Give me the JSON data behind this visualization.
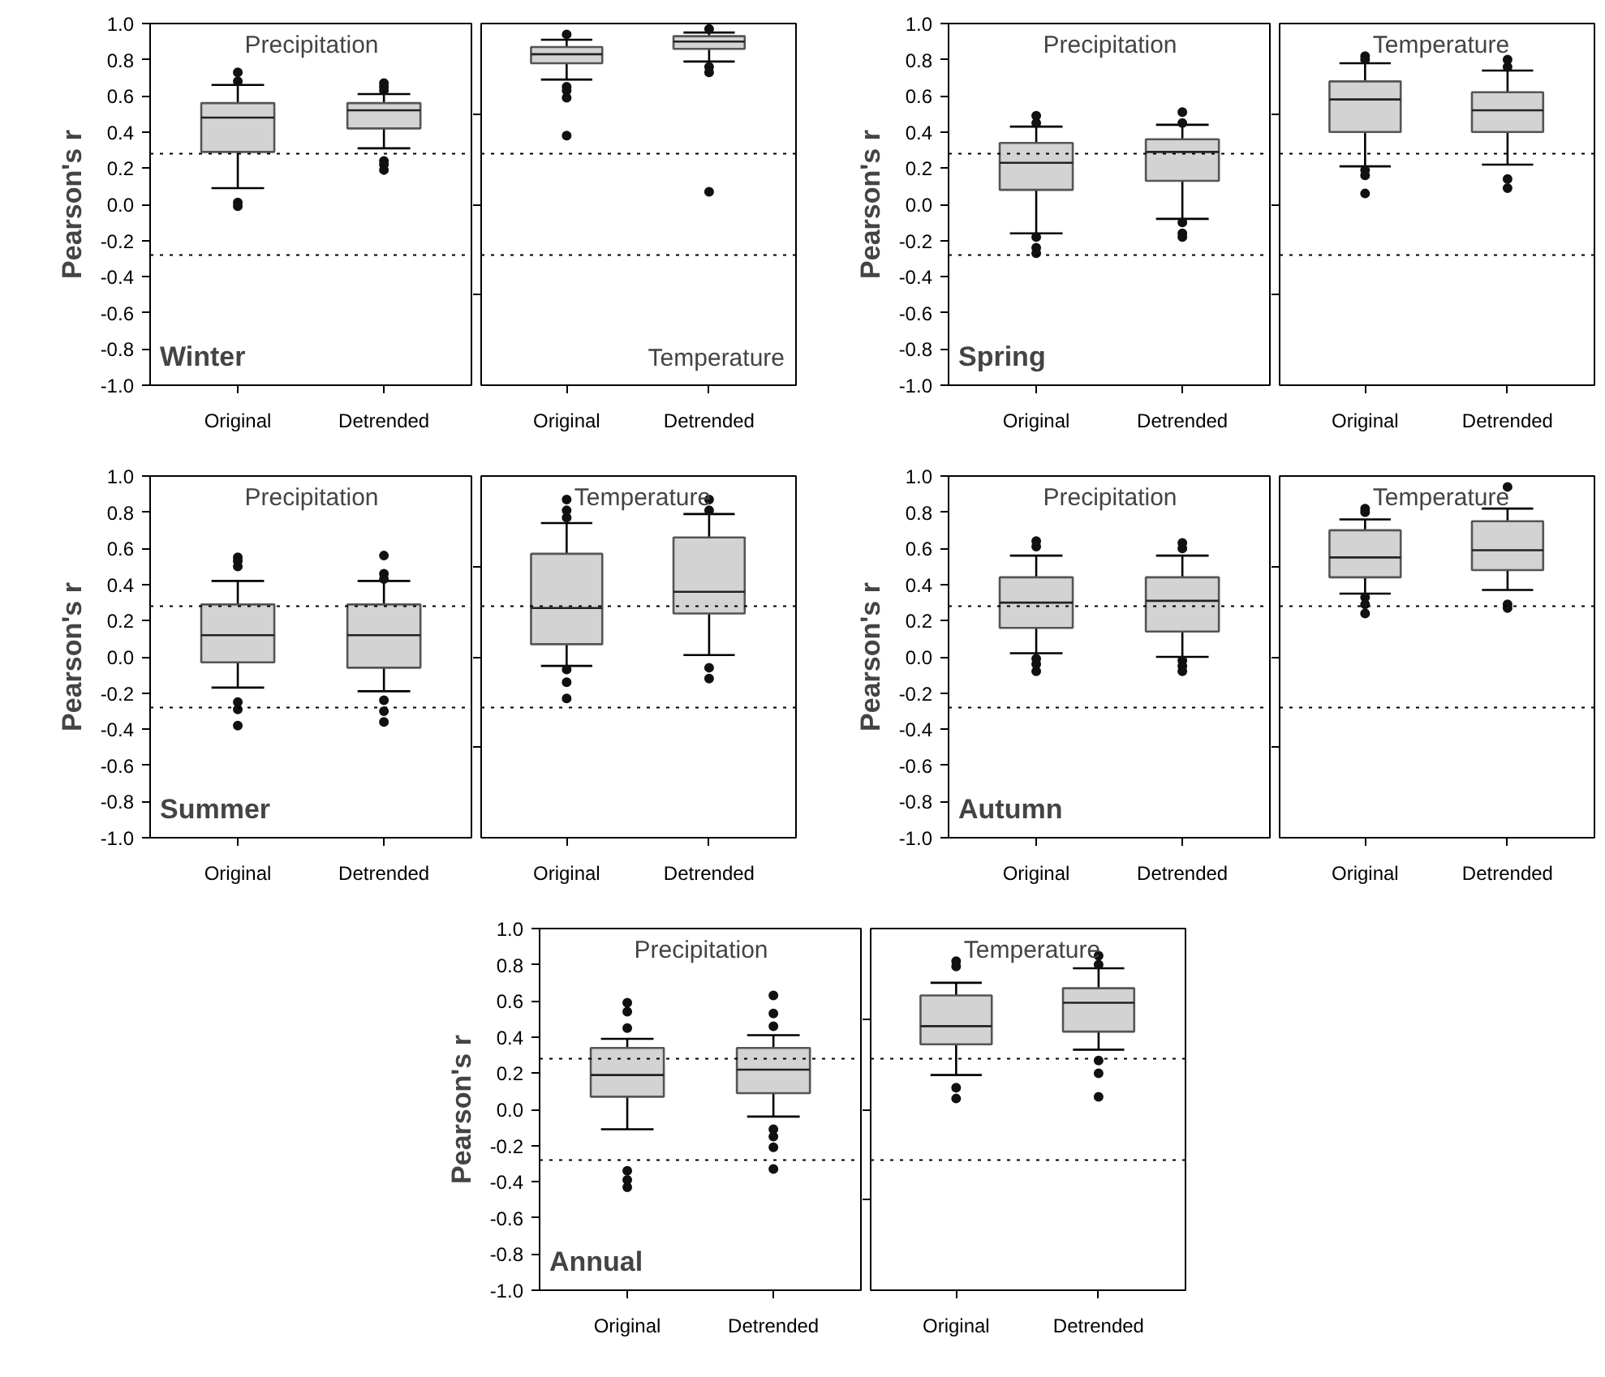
{
  "chart_data": [
    {
      "type": "box",
      "ylabel": "Pearson's r",
      "annotations": [
        "Precipitation",
        "Winter"
      ],
      "categories": [
        "Original",
        "Detrended"
      ],
      "ylim": [
        -1,
        1
      ],
      "yticks": [
        {
          "value": 1,
          "label": "1.0"
        },
        0.8,
        0.6,
        0.4,
        0.2,
        {
          "value": 0,
          "label": "0.0"
        },
        -0.2,
        -0.4,
        -0.6,
        -0.8,
        {
          "value": -1,
          "label": "-1.0"
        }
      ],
      "ref_lines": [
        {
          "axis": "y",
          "value": 0.28,
          "line_style": "dotted"
        },
        {
          "axis": "y",
          "value": -0.28,
          "line_style": "dotted"
        }
      ],
      "boxes": [
        {
          "low": 0.09,
          "q1": 0.29,
          "median": 0.48,
          "q3": 0.56,
          "high": 0.66,
          "outliers": [
            0.73,
            0.68,
            0.01,
            -0.01
          ]
        },
        {
          "low": 0.31,
          "q1": 0.42,
          "median": 0.52,
          "q3": 0.56,
          "high": 0.61,
          "outliers": [
            0.67,
            0.65,
            0.63,
            0.24,
            0.22,
            0.19
          ]
        }
      ]
    },
    {
      "type": "box",
      "annotations": [
        "Temperature"
      ],
      "tick_labels": "x",
      "categories": [
        "Original",
        "Detrended"
      ],
      "ylim": [
        -1,
        1
      ],
      "yticks": [
        {
          "value": 0.5,
          "label": null
        },
        {
          "value": 0,
          "label": null
        },
        {
          "value": -0.5,
          "label": null
        }
      ],
      "ref_lines": [
        {
          "axis": "y",
          "value": 0.28,
          "line_style": "dotted"
        },
        {
          "axis": "y",
          "value": -0.28,
          "line_style": "dotted"
        }
      ],
      "boxes": [
        {
          "low": 0.69,
          "q1": 0.78,
          "median": 0.83,
          "q3": 0.87,
          "high": 0.91,
          "outliers": [
            0.94,
            0.65,
            0.63,
            0.59,
            0.38
          ]
        },
        {
          "low": 0.79,
          "q1": 0.86,
          "median": 0.9,
          "q3": 0.93,
          "high": 0.95,
          "outliers": [
            0.97,
            0.76,
            0.73,
            0.07
          ]
        }
      ]
    },
    {
      "type": "box",
      "ylabel": "Pearson's r",
      "annotations": [
        "Precipitation",
        "Spring"
      ],
      "categories": [
        "Original",
        "Detrended"
      ],
      "ylim": [
        -1,
        1
      ],
      "yticks": [
        {
          "value": 1,
          "label": "1.0"
        },
        0.8,
        0.6,
        0.4,
        0.2,
        {
          "value": 0,
          "label": "0.0"
        },
        -0.2,
        -0.4,
        -0.6,
        -0.8,
        {
          "value": -1,
          "label": "-1.0"
        }
      ],
      "ref_lines": [
        {
          "axis": "y",
          "value": 0.28,
          "line_style": "dotted"
        },
        {
          "axis": "y",
          "value": -0.28,
          "line_style": "dotted"
        }
      ],
      "boxes": [
        {
          "low": -0.16,
          "q1": 0.08,
          "median": 0.23,
          "q3": 0.34,
          "high": 0.43,
          "outliers": [
            0.49,
            0.45,
            -0.18,
            -0.24,
            -0.27
          ]
        },
        {
          "low": -0.08,
          "q1": 0.13,
          "median": 0.29,
          "q3": 0.36,
          "high": 0.44,
          "outliers": [
            0.51,
            0.45,
            -0.1,
            -0.16,
            -0.18
          ]
        }
      ]
    },
    {
      "type": "box",
      "annotations": [
        "Temperature"
      ],
      "tick_labels": "x",
      "categories": [
        "Original",
        "Detrended"
      ],
      "ylim": [
        -1,
        1
      ],
      "yticks": [
        {
          "value": 0.5,
          "label": null
        },
        {
          "value": 0,
          "label": null
        },
        {
          "value": -0.5,
          "label": null
        }
      ],
      "ref_lines": [
        {
          "axis": "y",
          "value": 0.28,
          "line_style": "dotted"
        },
        {
          "axis": "y",
          "value": -0.28,
          "line_style": "dotted"
        }
      ],
      "boxes": [
        {
          "low": 0.21,
          "q1": 0.4,
          "median": 0.58,
          "q3": 0.68,
          "high": 0.78,
          "outliers": [
            0.82,
            0.8,
            0.19,
            0.16,
            0.06
          ]
        },
        {
          "low": 0.22,
          "q1": 0.4,
          "median": 0.52,
          "q3": 0.62,
          "high": 0.74,
          "outliers": [
            0.8,
            0.76,
            0.14,
            0.09
          ]
        }
      ]
    },
    {
      "type": "box",
      "ylabel": "Pearson's r",
      "annotations": [
        "Precipitation",
        "Summer"
      ],
      "categories": [
        "Original",
        "Detrended"
      ],
      "ylim": [
        -1,
        1
      ],
      "yticks": [
        {
          "value": 1,
          "label": "1.0"
        },
        0.8,
        0.6,
        0.4,
        0.2,
        {
          "value": 0,
          "label": "0.0"
        },
        -0.2,
        -0.4,
        -0.6,
        -0.8,
        {
          "value": -1,
          "label": "-1.0"
        }
      ],
      "ref_lines": [
        {
          "axis": "y",
          "value": 0.28,
          "line_style": "dotted"
        },
        {
          "axis": "y",
          "value": -0.28,
          "line_style": "dotted"
        }
      ],
      "boxes": [
        {
          "low": -0.17,
          "q1": -0.03,
          "median": 0.12,
          "q3": 0.29,
          "high": 0.42,
          "outliers": [
            0.55,
            0.53,
            0.5,
            -0.25,
            -0.29,
            -0.38
          ]
        },
        {
          "low": -0.19,
          "q1": -0.06,
          "median": 0.12,
          "q3": 0.29,
          "high": 0.42,
          "outliers": [
            0.56,
            0.46,
            0.43,
            -0.24,
            -0.3,
            -0.36
          ]
        }
      ]
    },
    {
      "type": "box",
      "annotations": [
        "Temperature"
      ],
      "tick_labels": "x",
      "categories": [
        "Original",
        "Detrended"
      ],
      "ylim": [
        -1,
        1
      ],
      "yticks": [
        {
          "value": 0.5,
          "label": null
        },
        {
          "value": 0,
          "label": null
        },
        {
          "value": -0.5,
          "label": null
        }
      ],
      "ref_lines": [
        {
          "axis": "y",
          "value": 0.28,
          "line_style": "dotted"
        },
        {
          "axis": "y",
          "value": -0.28,
          "line_style": "dotted"
        }
      ],
      "boxes": [
        {
          "low": -0.05,
          "q1": 0.07,
          "median": 0.27,
          "q3": 0.57,
          "high": 0.74,
          "outliers": [
            0.87,
            0.81,
            0.77,
            -0.07,
            -0.14,
            -0.23
          ]
        },
        {
          "low": 0.01,
          "q1": 0.24,
          "median": 0.36,
          "q3": 0.66,
          "high": 0.79,
          "outliers": [
            0.87,
            0.81,
            -0.06,
            -0.12
          ]
        }
      ]
    },
    {
      "type": "box",
      "ylabel": "Pearson's r",
      "annotations": [
        "Precipitation",
        "Autumn"
      ],
      "categories": [
        "Original",
        "Detrended"
      ],
      "ylim": [
        -1,
        1
      ],
      "yticks": [
        {
          "value": 1,
          "label": "1.0"
        },
        0.8,
        0.6,
        0.4,
        0.2,
        {
          "value": 0,
          "label": "0.0"
        },
        -0.2,
        -0.4,
        -0.6,
        -0.8,
        {
          "value": -1,
          "label": "-1.0"
        }
      ],
      "ref_lines": [
        {
          "axis": "y",
          "value": 0.28,
          "line_style": "dotted"
        },
        {
          "axis": "y",
          "value": -0.28,
          "line_style": "dotted"
        }
      ],
      "boxes": [
        {
          "low": 0.02,
          "q1": 0.16,
          "median": 0.3,
          "q3": 0.44,
          "high": 0.56,
          "outliers": [
            0.64,
            0.61,
            -0.01,
            -0.04,
            -0.08
          ]
        },
        {
          "low": 0.0,
          "q1": 0.14,
          "median": 0.31,
          "q3": 0.44,
          "high": 0.56,
          "outliers": [
            0.63,
            0.6,
            -0.02,
            -0.05,
            -0.08
          ]
        }
      ]
    },
    {
      "type": "box",
      "annotations": [
        "Temperature"
      ],
      "tick_labels": "x",
      "categories": [
        "Original",
        "Detrended"
      ],
      "ylim": [
        -1,
        1
      ],
      "yticks": [
        {
          "value": 0.5,
          "label": null
        },
        {
          "value": 0,
          "label": null
        },
        {
          "value": -0.5,
          "label": null
        }
      ],
      "ref_lines": [
        {
          "axis": "y",
          "value": 0.28,
          "line_style": "dotted"
        },
        {
          "axis": "y",
          "value": -0.28,
          "line_style": "dotted"
        }
      ],
      "boxes": [
        {
          "low": 0.35,
          "q1": 0.44,
          "median": 0.55,
          "q3": 0.7,
          "high": 0.76,
          "outliers": [
            0.82,
            0.8,
            0.33,
            0.29,
            0.24
          ]
        },
        {
          "low": 0.37,
          "q1": 0.48,
          "median": 0.59,
          "q3": 0.75,
          "high": 0.82,
          "outliers": [
            0.94,
            0.29,
            0.27
          ]
        }
      ]
    },
    {
      "type": "box",
      "ylabel": "Pearson's r",
      "annotations": [
        "Precipitation",
        "Annual"
      ],
      "categories": [
        "Original",
        "Detrended"
      ],
      "ylim": [
        -1,
        1
      ],
      "yticks": [
        {
          "value": 1,
          "label": "1.0"
        },
        0.8,
        0.6,
        0.4,
        0.2,
        {
          "value": 0,
          "label": "0.0"
        },
        -0.2,
        -0.4,
        -0.6,
        -0.8,
        {
          "value": -1,
          "label": "-1.0"
        }
      ],
      "ref_lines": [
        {
          "axis": "y",
          "value": 0.28,
          "line_style": "dotted"
        },
        {
          "axis": "y",
          "value": -0.28,
          "line_style": "dotted"
        }
      ],
      "boxes": [
        {
          "low": -0.11,
          "q1": 0.07,
          "median": 0.19,
          "q3": 0.34,
          "high": 0.39,
          "outliers": [
            0.59,
            0.54,
            0.45,
            -0.34,
            -0.39,
            -0.43
          ]
        },
        {
          "low": -0.04,
          "q1": 0.09,
          "median": 0.22,
          "q3": 0.34,
          "high": 0.41,
          "outliers": [
            0.63,
            0.53,
            0.46,
            -0.11,
            -0.15,
            -0.21,
            -0.33
          ]
        }
      ]
    },
    {
      "type": "box",
      "annotations": [
        "Temperature"
      ],
      "tick_labels": "x",
      "categories": [
        "Original",
        "Detrended"
      ],
      "ylim": [
        -1,
        1
      ],
      "yticks": [
        {
          "value": 0.5,
          "label": null
        },
        {
          "value": 0,
          "label": null
        },
        {
          "value": -0.5,
          "label": null
        }
      ],
      "ref_lines": [
        {
          "axis": "y",
          "value": 0.28,
          "line_style": "dotted"
        },
        {
          "axis": "y",
          "value": -0.28,
          "line_style": "dotted"
        }
      ],
      "boxes": [
        {
          "low": 0.19,
          "q1": 0.36,
          "median": 0.46,
          "q3": 0.63,
          "high": 0.7,
          "outliers": [
            0.82,
            0.79,
            0.12,
            0.06
          ]
        },
        {
          "low": 0.33,
          "q1": 0.43,
          "median": 0.59,
          "q3": 0.67,
          "high": 0.78,
          "outliers": [
            0.85,
            0.8,
            0.27,
            0.2,
            0.07
          ]
        }
      ]
    }
  ]
}
